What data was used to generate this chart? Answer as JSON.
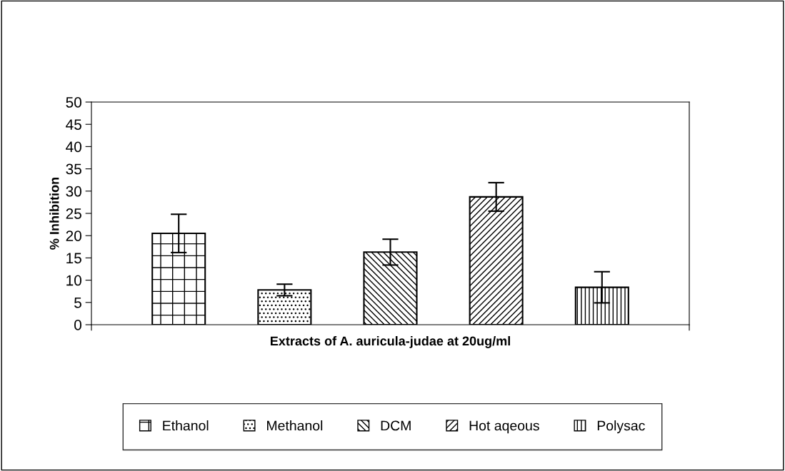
{
  "chart_data": {
    "type": "bar",
    "xlabel": "Extracts of A. auricula-judae at 20ug/ml",
    "ylabel": "% Inhibition",
    "categories": [
      null
    ],
    "series": [
      {
        "name": "Ethanol",
        "color": "#000000",
        "values": [
          20.5
        ],
        "errors": [
          4.3
        ]
      },
      {
        "name": "Methanol",
        "color": "#000000",
        "values": [
          7.8
        ],
        "errors": [
          1.3
        ]
      },
      {
        "name": "DCM",
        "color": "#000000",
        "values": [
          16.3
        ],
        "errors": [
          2.9
        ]
      },
      {
        "name": "Hot aqeous",
        "color": "#000000",
        "values": [
          28.7
        ],
        "errors": [
          3.2
        ]
      },
      {
        "name": "Polysac",
        "color": "#000000",
        "values": [
          8.4
        ],
        "errors": [
          3.5
        ]
      }
    ],
    "ylim": [
      0,
      50
    ],
    "yticks": [
      0,
      5,
      10,
      15,
      20,
      25,
      30,
      35,
      40,
      45,
      50
    ],
    "grid": false,
    "legend": "bottom"
  }
}
